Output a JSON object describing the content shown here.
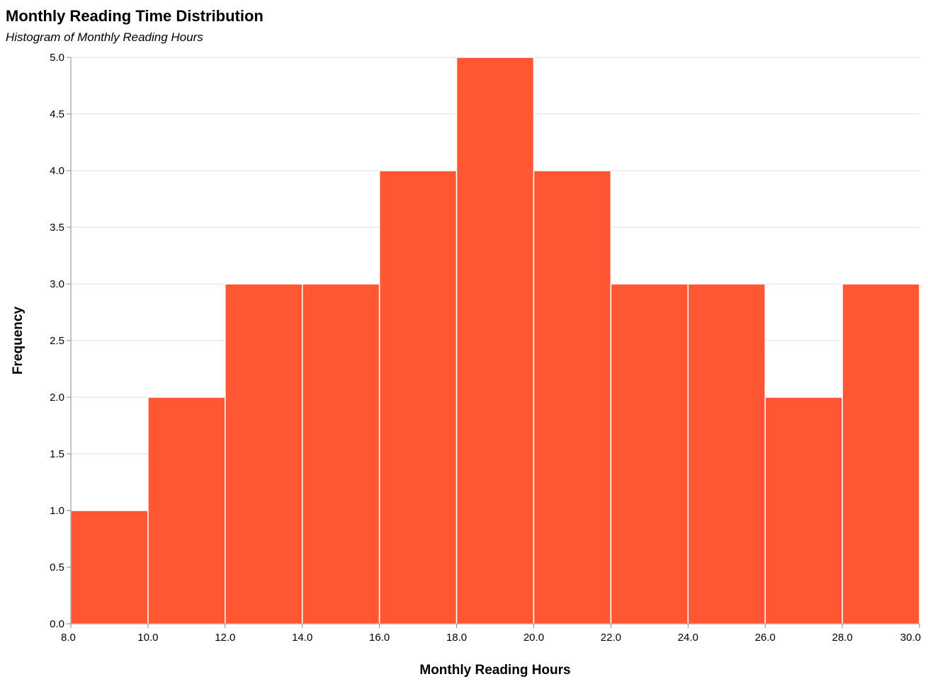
{
  "chart_data": {
    "type": "bar",
    "title": "Monthly Reading Time Distribution",
    "subtitle": "Histogram of Monthly Reading Hours",
    "xlabel": "Monthly Reading Hours",
    "ylabel": "Frequency",
    "bin_edges": [
      8,
      10,
      12,
      14,
      16,
      18,
      20,
      22,
      24,
      26,
      28,
      30
    ],
    "values": [
      1,
      2,
      3,
      3,
      4,
      5,
      4,
      3,
      3,
      2,
      3
    ],
    "xlim": [
      8,
      30
    ],
    "ylim": [
      0,
      5
    ],
    "x_ticks": [
      "8.0",
      "10.0",
      "12.0",
      "14.0",
      "16.0",
      "18.0",
      "20.0",
      "22.0",
      "24.0",
      "26.0",
      "28.0",
      "30.0"
    ],
    "y_ticks": [
      "0.0",
      "0.5",
      "1.0",
      "1.5",
      "2.0",
      "2.5",
      "3.0",
      "3.5",
      "4.0",
      "4.5",
      "5.0"
    ],
    "grid": true,
    "bar_color": "#ff5733"
  }
}
